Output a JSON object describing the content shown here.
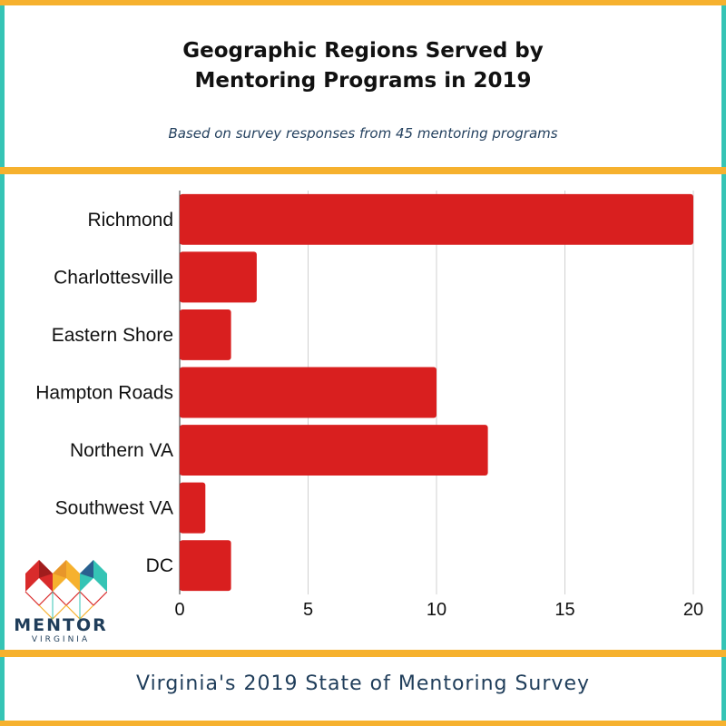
{
  "header": {
    "title_line1": "Geographic Regions Served by",
    "title_line2": "Mentoring Programs in 2019",
    "subtitle": "Based on survey responses from 45 mentoring programs"
  },
  "footer": {
    "text": "Virginia's 2019 State of Mentoring Survey"
  },
  "logo": {
    "word": "MENTOR",
    "sub": "VIRGINIA"
  },
  "colors": {
    "bar": "#d91f1f",
    "accent_border": "#f6b12e",
    "side_border": "#35c4b5",
    "grid": "#d0d0d0"
  },
  "chart_data": {
    "type": "bar",
    "orientation": "horizontal",
    "categories": [
      "Richmond",
      "Charlottesville",
      "Eastern Shore",
      "Hampton Roads",
      "Northern VA",
      "Southwest VA",
      "DC"
    ],
    "values": [
      20,
      3,
      2,
      10,
      12,
      1,
      2
    ],
    "xlim": [
      0,
      20
    ],
    "xticks": [
      0,
      5,
      10,
      15,
      20
    ],
    "title": "Geographic Regions Served by Mentoring Programs in 2019",
    "xlabel": "",
    "ylabel": "",
    "grid": true
  }
}
